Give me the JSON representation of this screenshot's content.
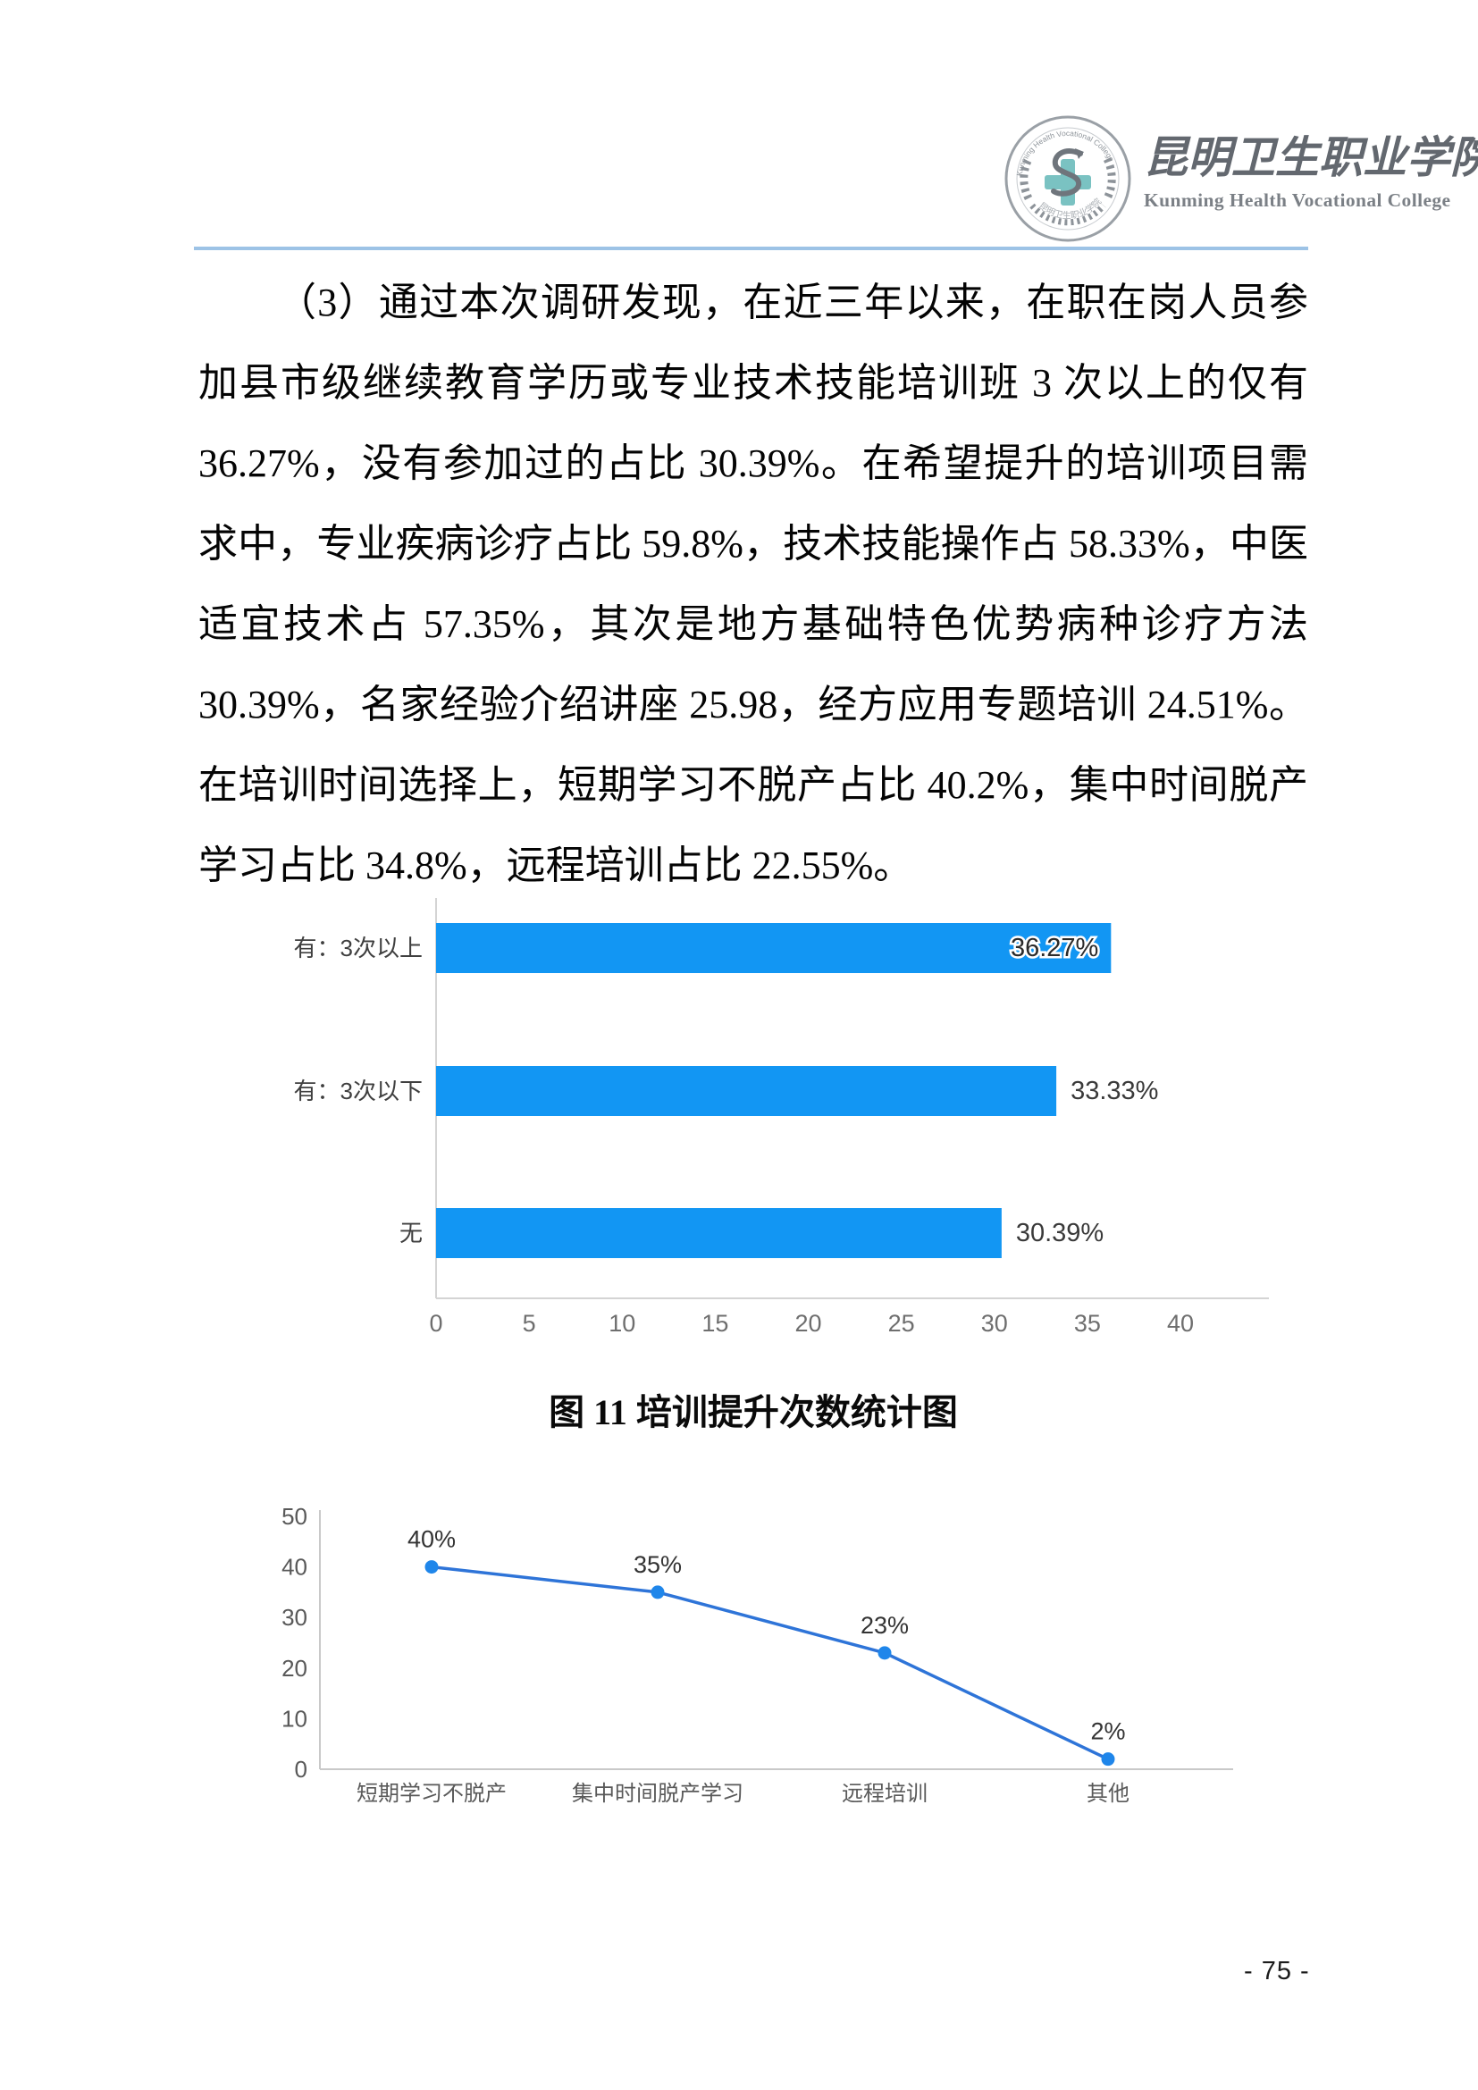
{
  "header": {
    "college_name_zh": "昆明卫生职业学院",
    "college_name_en": "Kunming Health Vocational College",
    "logo": {
      "icon": "medical-seal-icon",
      "ring_text_top": "Kunming Health Vocational College",
      "ring_text_bottom": "昆明卫生职业学院",
      "ring_color": "#8d9399",
      "accent_color": "#7ac2c2"
    }
  },
  "divider_color": "#9dc3e6",
  "body": {
    "paragraph": "（3）通过本次调研发现，在近三年以来，在职在岗人员参加县市级继续教育学历或专业技术技能培训班 3 次以上的仅有 36.27%，没有参加过的占比 30.39%。在希望提升的培训项目需求中，专业疾病诊疗占比 59.8%，技术技能操作占 58.33%，中医适宜技术占 57.35%，其次是地方基础特色优势病种诊疗方法 30.39%，名家经验介绍讲座 25.98，经方应用专题培训 24.51%。在培训时间选择上，短期学习不脱产占比 40.2%，集中时间脱产学习占比 34.8%，远程培训占比 22.55%。"
  },
  "figure_caption": "图 11 培训提升次数统计图",
  "page_number": "- 75 -",
  "chart_data": [
    {
      "type": "bar",
      "orientation": "horizontal",
      "title": "",
      "categories": [
        "有：3次以上",
        "有：3次以下",
        "无"
      ],
      "values": [
        36.27,
        33.33,
        30.39
      ],
      "value_labels": [
        "36.27%",
        "33.33%",
        "30.39%"
      ],
      "value_label_position": [
        "inside-end",
        "outside-end",
        "outside-end"
      ],
      "xlim": [
        0,
        40
      ],
      "x_ticks": [
        "0",
        "5",
        "10",
        "15",
        "20",
        "25",
        "30",
        "35",
        "40"
      ],
      "bar_color": "#1296f3",
      "axis_color": "#d4d4d4",
      "tick_label_color": "#6e6e6e",
      "category_label_color": "#3f3f3f",
      "grid": false,
      "legend": "none"
    },
    {
      "type": "line",
      "title": "",
      "categories": [
        "短期学习不脱产",
        "集中时间脱产学习",
        "远程培训",
        "其他"
      ],
      "values": [
        40,
        35,
        23,
        2
      ],
      "value_labels": [
        "40%",
        "35%",
        "23%",
        "2%"
      ],
      "ylim": [
        0,
        50
      ],
      "y_ticks": [
        "0",
        "10",
        "20",
        "30",
        "40",
        "50"
      ],
      "line_color": "#2e74d8",
      "marker_color": "#1f86ea",
      "axis_color": "#c9c9c9",
      "tick_label_color": "#595959",
      "category_label_color": "#595959",
      "data_label_color": "#333333",
      "grid": false,
      "legend": "none"
    }
  ]
}
